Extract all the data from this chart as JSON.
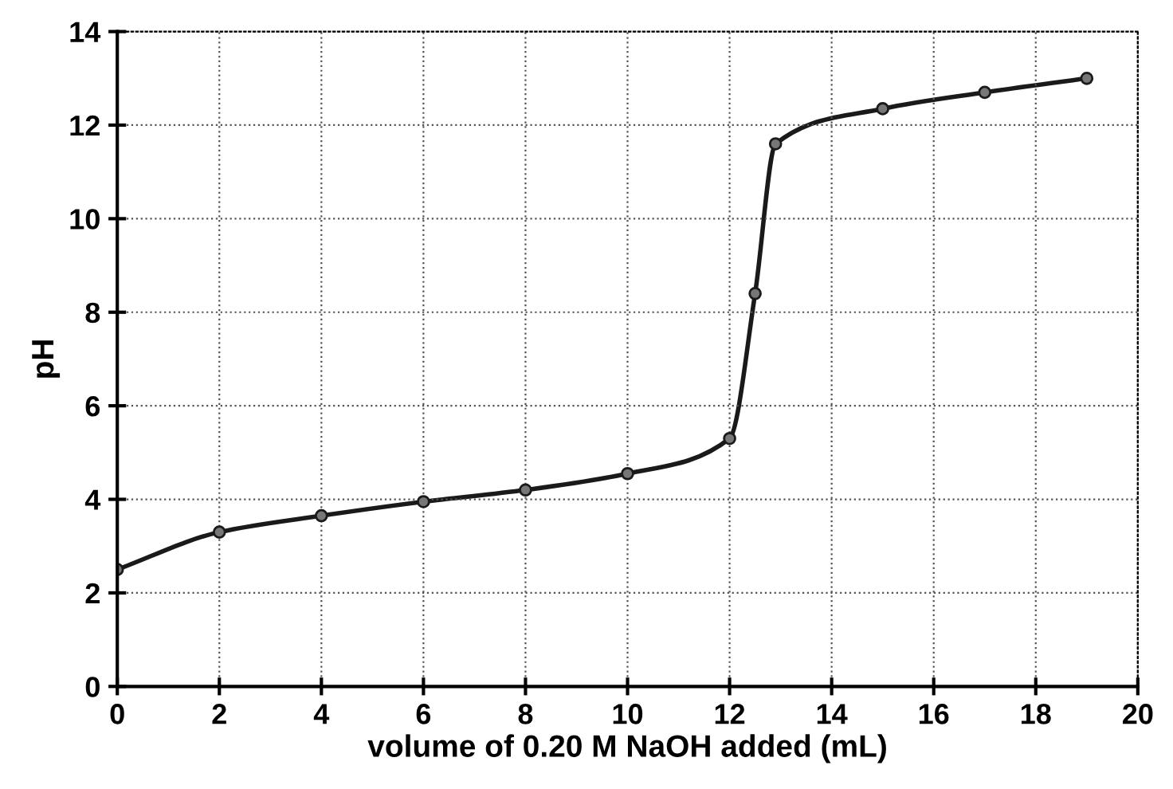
{
  "chart_data": {
    "type": "line",
    "xlabel": "volume of 0.20 M NaOH added (mL)",
    "ylabel": "pH",
    "series": [
      {
        "color": "#1a1a1a",
        "x": [
          0,
          2,
          4,
          6,
          8,
          10,
          12,
          12.5,
          12.9,
          15,
          17,
          19
        ],
        "values": [
          2.5,
          3.3,
          3.65,
          3.95,
          4.2,
          4.55,
          5.3,
          8.4,
          11.6,
          12.35,
          12.7,
          13.0
        ]
      }
    ],
    "xlim": [
      0,
      20
    ],
    "ylim": [
      0,
      14
    ],
    "xticks": [
      0,
      2,
      4,
      6,
      8,
      10,
      12,
      14,
      16,
      18,
      20
    ],
    "yticks": [
      0,
      2,
      4,
      6,
      8,
      10,
      12,
      14
    ],
    "grid": true,
    "marker": "circle",
    "line_style": "solid"
  }
}
